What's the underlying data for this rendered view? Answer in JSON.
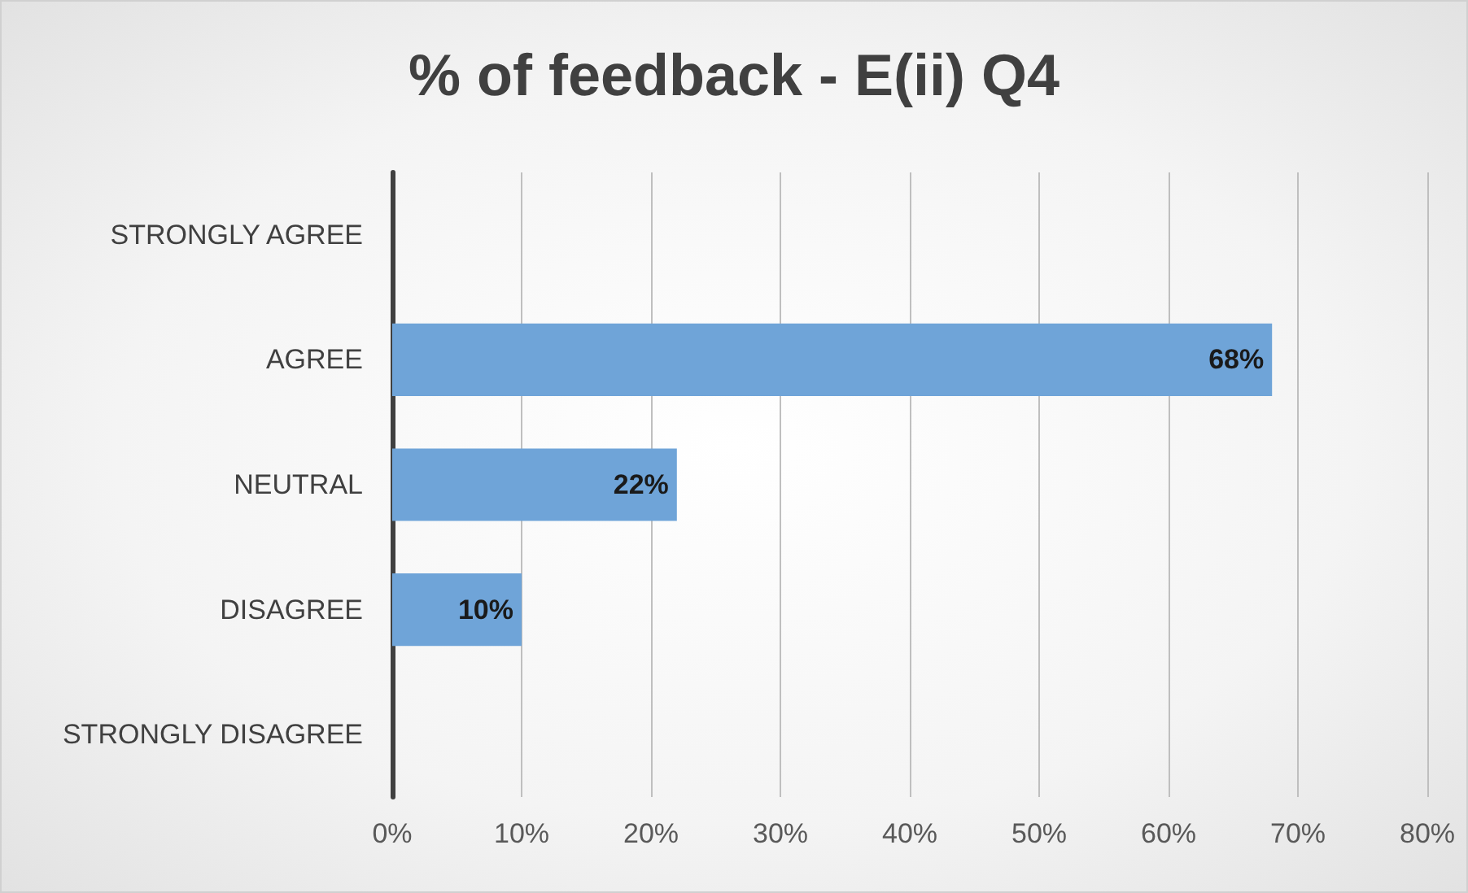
{
  "chart_data": {
    "type": "bar",
    "orientation": "horizontal",
    "title": "% of feedback - E(ii) Q4",
    "categories": [
      "STRONGLY AGREE",
      "AGREE",
      "NEUTRAL",
      "DISAGREE",
      "STRONGLY DISAGREE"
    ],
    "values": [
      0,
      68,
      22,
      10,
      0
    ],
    "value_labels": [
      null,
      "68%",
      "22%",
      "10%",
      null
    ],
    "color": "#6fa4d8",
    "xlim": [
      0,
      80
    ],
    "xticks": [
      {
        "value": 0,
        "label": "0%"
      },
      {
        "value": 10,
        "label": "10%"
      },
      {
        "value": 20,
        "label": "20%"
      },
      {
        "value": 30,
        "label": "30%"
      },
      {
        "value": 40,
        "label": "40%"
      },
      {
        "value": 50,
        "label": "50%"
      },
      {
        "value": 60,
        "label": "60%"
      },
      {
        "value": 70,
        "label": "70%"
      },
      {
        "value": 80,
        "label": "80%"
      }
    ],
    "grid": "x"
  }
}
